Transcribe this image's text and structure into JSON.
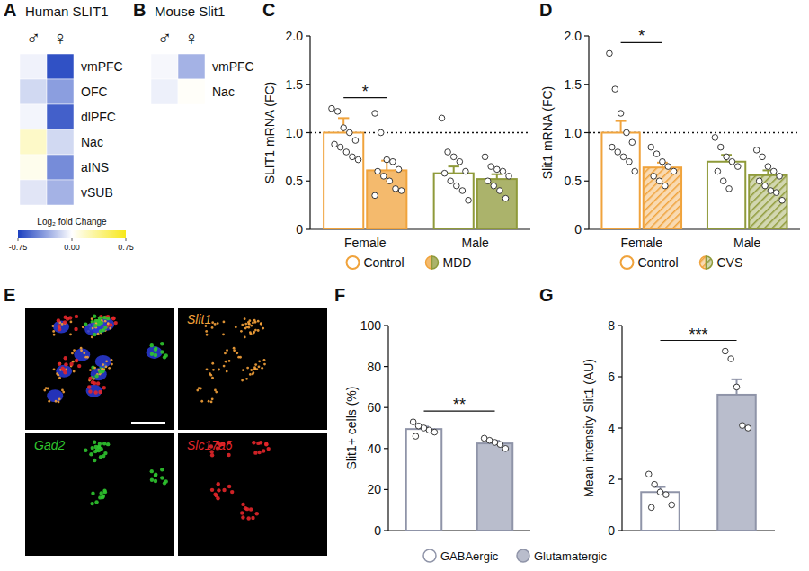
{
  "chart_data": [
    {
      "type": "heatmap",
      "panel_label": "A",
      "title": "Human SLIT1",
      "columns": [
        "♂",
        "♀"
      ],
      "rows": [
        "vmPFC",
        "OFC",
        "dlPFC",
        "Nac",
        "aINS",
        "vSUB"
      ],
      "cells": [
        [
          -0.05,
          -0.68
        ],
        [
          -0.15,
          -0.38
        ],
        [
          -0.04,
          -0.62
        ],
        [
          0.18,
          -0.15
        ],
        [
          0.06,
          -0.45
        ],
        [
          -0.1,
          -0.3
        ]
      ],
      "colorbar": {
        "label": "Log₂ fold Change",
        "range": [
          -0.75,
          0.75
        ],
        "ticks": [
          -0.75,
          {
            "value": 0,
            "label": "0.00"
          },
          0.75
        ],
        "colors": [
          "#1b3fbf",
          "#ffffff",
          "#f7e81a"
        ]
      }
    },
    {
      "type": "heatmap",
      "panel_label": "B",
      "title": "Mouse Slit1",
      "columns": [
        "♂",
        "♀"
      ],
      "rows": [
        "vmPFC",
        "Nac"
      ],
      "cells": [
        [
          -0.03,
          -0.3
        ],
        [
          -0.06,
          0.02
        ]
      ]
    },
    {
      "type": "bar",
      "panel_label": "C",
      "ylabel": "SLIT1 mRNA (FC)",
      "categories": [
        "Female",
        "Male"
      ],
      "ylim": [
        0,
        2
      ],
      "yticks": [
        0,
        0.5,
        {
          "value": 1,
          "label": "1.0"
        },
        1.5,
        {
          "value": 2,
          "label": "2.0"
        }
      ],
      "reference_line": 1,
      "series": [
        {
          "name": "Control",
          "colors": [
            "#f0a33c",
            "#8f9a3a"
          ],
          "values": [
            1.0,
            0.58
          ],
          "errors": [
            0.15,
            0.07
          ],
          "points": [
            [
              1.25,
              1.22,
              1.05,
              1.0,
              0.92,
              0.88,
              0.85,
              0.8,
              0.75,
              0.72
            ],
            [
              1.15,
              0.8,
              0.75,
              0.7,
              0.6,
              0.58,
              0.5,
              0.45,
              0.4,
              0.3
            ]
          ]
        },
        {
          "name": "MDD",
          "colors": [
            "#f0a33c",
            "#8f9a3a"
          ],
          "values": [
            0.61,
            0.52
          ],
          "errors": [
            0.1,
            0.05
          ],
          "points": [
            [
              1.2,
              1.0,
              0.72,
              0.7,
              0.62,
              0.6,
              0.55,
              0.5,
              0.42,
              0.4,
              0.35
            ],
            [
              0.75,
              0.65,
              0.62,
              0.6,
              0.55,
              0.5,
              0.45,
              0.4,
              0.32
            ]
          ]
        }
      ],
      "significance": [
        {
          "label": "*",
          "category": 0
        }
      ]
    },
    {
      "type": "bar",
      "panel_label": "D",
      "ylabel": "Slit1 mRNA (FC)",
      "categories": [
        "Female",
        "Male"
      ],
      "ylim": [
        0,
        2
      ],
      "yticks": [
        0,
        0.5,
        {
          "value": 1,
          "label": "1.0"
        },
        1.5,
        {
          "value": 2,
          "label": "2.0"
        }
      ],
      "reference_line": 1,
      "series": [
        {
          "name": "Control",
          "colors": [
            "#f0a33c",
            "#8f9a3a"
          ],
          "values": [
            1.0,
            0.7
          ],
          "errors": [
            0.12,
            0.07
          ],
          "points": [
            [
              1.82,
              1.45,
              1.2,
              1.0,
              0.9,
              0.85,
              0.8,
              0.75,
              0.7,
              0.6
            ],
            [
              0.95,
              0.85,
              0.75,
              0.7,
              0.65,
              0.6,
              0.5,
              0.42
            ]
          ]
        },
        {
          "name": "CVS",
          "colors": [
            "#f0a33c",
            "#8f9a3a"
          ],
          "values": [
            0.64,
            0.56
          ],
          "errors": [
            0.05,
            0.05
          ],
          "points": [
            [
              0.85,
              0.78,
              0.7,
              0.65,
              0.6,
              0.55,
              0.5,
              0.45
            ],
            [
              0.82,
              0.75,
              0.65,
              0.6,
              0.55,
              0.5,
              0.45,
              0.4,
              0.38,
              0.3
            ]
          ]
        }
      ],
      "significance": [
        {
          "label": "*",
          "category": 0
        }
      ]
    },
    {
      "type": "image",
      "panel_label": "E",
      "channels": [
        {
          "name": "Slit1",
          "color": "#f4a13a"
        },
        {
          "name": "Gad2",
          "color": "#2fc42f"
        },
        {
          "name": "Slc17a6",
          "color": "#e3262a"
        }
      ]
    },
    {
      "type": "bar",
      "panel_label": "F",
      "ylabel": "Slit1+ cells (%)",
      "categories": [
        "GABAergic",
        "Glutamatergic"
      ],
      "tick_labels": "y",
      "ylim": [
        0,
        100
      ],
      "yticks": [
        0,
        20,
        40,
        60,
        80,
        100
      ],
      "series": [
        {
          "colors": [
            "#ffffff",
            "#b9bdcc"
          ],
          "values": [
            49.5,
            42.5
          ],
          "errors": [
            1.2,
            1.3
          ],
          "points": [
            [
              53,
              51,
              50,
              49,
              48,
              46
            ],
            [
              45,
              44,
              43,
              42,
              40
            ]
          ]
        }
      ],
      "significance": [
        {
          "label": "**"
        }
      ]
    },
    {
      "type": "bar",
      "panel_label": "G",
      "ylabel": "Mean intensity Slit1 (AU)",
      "tick_labels": "y",
      "ylim": [
        0,
        8
      ],
      "yticks": [
        0,
        2,
        4,
        6,
        8
      ],
      "series": [
        {
          "colors": [
            "#ffffff",
            "#b9bdcc"
          ],
          "values": [
            1.5,
            5.3
          ],
          "errors": [
            0.2,
            0.6
          ],
          "points": [
            [
              2.2,
              1.8,
              1.5,
              1.4,
              1.0,
              0.9
            ],
            [
              7.0,
              6.7,
              5.6,
              4.1,
              4.0
            ]
          ]
        }
      ],
      "significance": [
        {
          "label": "***"
        }
      ]
    }
  ]
}
